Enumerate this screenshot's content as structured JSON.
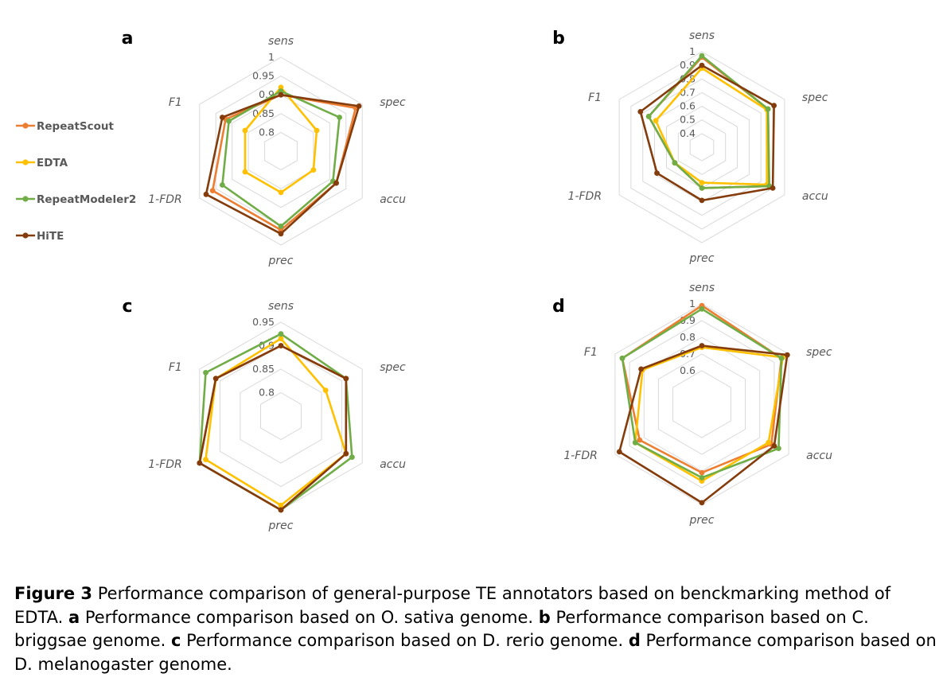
{
  "colors": {
    "RepeatScout": "#ED7D31",
    "EDTA": "#FFC000",
    "RepeatModeler2": "#70AD47",
    "HiTE": "#843C0C",
    "grid": "#D9D9D9"
  },
  "legend": [
    "RepeatScout",
    "EDTA",
    "RepeatModeler2",
    "HiTE"
  ],
  "chart_data": [
    {
      "type": "radar",
      "panel": "a",
      "axes": [
        "sens",
        "spec",
        "accu",
        "prec",
        "1-FDR",
        "F1"
      ],
      "range": [
        0.75,
        1.0
      ],
      "ticks": [
        "1",
        "0.95",
        "0.9",
        "0.85",
        "0.8"
      ],
      "tick_values": [
        1.0,
        0.95,
        0.9,
        0.85,
        0.8
      ],
      "series": [
        {
          "name": "RepeatScout",
          "values": [
            0.9,
            0.98,
            0.92,
            0.96,
            0.96,
            0.92
          ]
        },
        {
          "name": "EDTA",
          "values": [
            0.92,
            0.86,
            0.85,
            0.86,
            0.86,
            0.86
          ]
        },
        {
          "name": "RepeatModeler2",
          "values": [
            0.91,
            0.93,
            0.91,
            0.95,
            0.93,
            0.91
          ]
        },
        {
          "name": "HiTE",
          "values": [
            0.9,
            0.99,
            0.92,
            0.97,
            0.98,
            0.93
          ]
        }
      ]
    },
    {
      "type": "radar",
      "panel": "b",
      "axes": [
        "sens",
        "spec",
        "accu",
        "prec",
        "1-FDR",
        "F1"
      ],
      "range": [
        0.3,
        1.0
      ],
      "ticks": [
        "1",
        "0.9",
        "0.8",
        "0.7",
        "0.6",
        "0.5",
        "0.4"
      ],
      "tick_values": [
        1.0,
        0.9,
        0.8,
        0.7,
        0.6,
        0.5,
        0.4
      ],
      "series": [
        {
          "name": "RepeatScout",
          "values": [
            0.96,
            0.86,
            0.87,
            0.6,
            0.53,
            0.75
          ]
        },
        {
          "name": "EDTA",
          "values": [
            0.88,
            0.85,
            0.85,
            0.56,
            0.53,
            0.69
          ]
        },
        {
          "name": "RepeatModeler2",
          "values": [
            0.97,
            0.86,
            0.87,
            0.6,
            0.53,
            0.75
          ]
        },
        {
          "name": "HiTE",
          "values": [
            0.9,
            0.91,
            0.9,
            0.69,
            0.68,
            0.82
          ]
        }
      ]
    },
    {
      "type": "radar",
      "panel": "c",
      "axes": [
        "sens",
        "spec",
        "accu",
        "prec",
        "1-FDR",
        "F1"
      ],
      "range": [
        0.75,
        0.95
      ],
      "ticks": [
        "0.95",
        "0.9",
        "0.85",
        "0.8"
      ],
      "tick_values": [
        0.95,
        0.9,
        0.85,
        0.8
      ],
      "series": [
        {
          "name": "RepeatScout",
          "values": [
            0.9,
            0.91,
            0.91,
            0.95,
            0.95,
            0.91
          ]
        },
        {
          "name": "EDTA",
          "values": [
            0.915,
            0.86,
            0.91,
            0.94,
            0.935,
            0.91
          ]
        },
        {
          "name": "RepeatModeler2",
          "values": [
            0.925,
            0.91,
            0.925,
            0.95,
            0.95,
            0.935
          ]
        },
        {
          "name": "HiTE",
          "values": [
            0.9,
            0.91,
            0.91,
            0.95,
            0.95,
            0.91
          ]
        }
      ]
    },
    {
      "type": "radar",
      "panel": "d",
      "axes": [
        "sens",
        "spec",
        "accu",
        "prec",
        "1-FDR",
        "F1"
      ],
      "range": [
        0.4,
        1.0
      ],
      "ticks": [
        "1",
        "0.9",
        "0.8",
        "0.7",
        "0.6"
      ],
      "tick_values": [
        1.0,
        0.9,
        0.8,
        0.7,
        0.6
      ],
      "series": [
        {
          "name": "RepeatScout",
          "values": [
            0.99,
            0.95,
            0.88,
            0.81,
            0.83,
            0.95
          ]
        },
        {
          "name": "EDTA",
          "values": [
            0.74,
            0.96,
            0.86,
            0.86,
            0.86,
            0.81
          ]
        },
        {
          "name": "RepeatModeler2",
          "values": [
            0.97,
            0.95,
            0.93,
            0.84,
            0.86,
            0.95
          ]
        },
        {
          "name": "HiTE",
          "values": [
            0.75,
            0.99,
            0.9,
            0.99,
            0.97,
            0.82
          ]
        }
      ]
    }
  ],
  "caption": {
    "label": "Figure 3",
    "parts": [
      {
        "bold": false,
        "text": " Performance comparison of general-purpose TE annotators based on benckmarking method of EDTA. "
      },
      {
        "bold": true,
        "text": "a"
      },
      {
        "bold": false,
        "text": " Performance comparison based on O. sativa genome. "
      },
      {
        "bold": true,
        "text": "b"
      },
      {
        "bold": false,
        "text": " Performance comparison based on C. briggsae genome. "
      },
      {
        "bold": true,
        "text": "c"
      },
      {
        "bold": false,
        "text": " Performance comparison based on D. rerio genome. "
      },
      {
        "bold": true,
        "text": "d"
      },
      {
        "bold": false,
        "text": " Performance comparison based on D. melanogaster genome."
      }
    ]
  }
}
